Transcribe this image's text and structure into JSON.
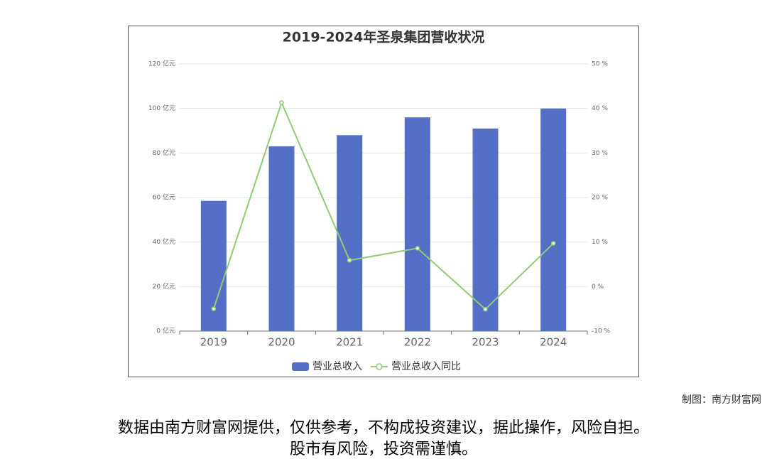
{
  "chart_data": {
    "type": "bar",
    "title": "2019-2024年圣泉集团营收状况",
    "categories": [
      "2019",
      "2020",
      "2021",
      "2022",
      "2023",
      "2024"
    ],
    "series": [
      {
        "name": "营业总收入",
        "color": "#5470c6",
        "type": "bar",
        "values": [
          58.5,
          83,
          88,
          96,
          91,
          100
        ]
      },
      {
        "name": "营业总收入同比",
        "color": "#91cc75",
        "type": "line",
        "axis": "y2",
        "values": [
          -5,
          41.3,
          5.9,
          8.6,
          -5.1,
          9.7
        ]
      }
    ],
    "ylim": [
      0,
      120
    ],
    "yticks": [
      {
        "value": 0,
        "label": "0 亿元"
      },
      {
        "value": 20,
        "label": "20 亿元"
      },
      {
        "value": 40,
        "label": "40 亿元"
      },
      {
        "value": 60,
        "label": "60 亿元"
      },
      {
        "value": 80,
        "label": "80 亿元"
      },
      {
        "value": 100,
        "label": "100 亿元"
      },
      {
        "value": 120,
        "label": "120 亿元"
      }
    ],
    "y2lim": [
      -10,
      50
    ],
    "y2ticks": [
      {
        "value": -10,
        "label": "-10 %"
      },
      {
        "value": 0,
        "label": "0 %"
      },
      {
        "value": 10,
        "label": "10 %"
      },
      {
        "value": 20,
        "label": "20 %"
      },
      {
        "value": 30,
        "label": "30 %"
      },
      {
        "value": 40,
        "label": "40 %"
      },
      {
        "value": 50,
        "label": "50 %"
      }
    ],
    "grid": true,
    "legend": "bottom"
  },
  "credit": "制图：南方财富网",
  "disclaimer": [
    "数据由南方财富网提供，仅供参考，不构成投资建议，据此操作，风险自担。",
    "股市有风险，投资需谨慎。"
  ]
}
